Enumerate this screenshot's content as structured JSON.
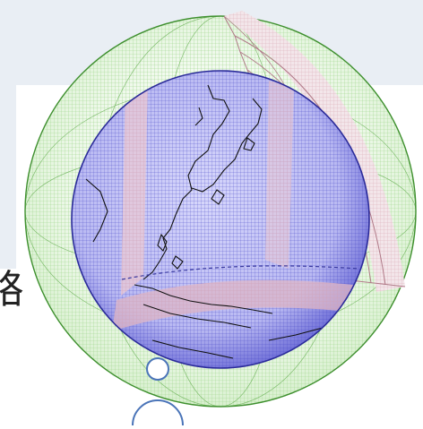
{
  "figure": {
    "edge_text": "略",
    "colors": {
      "background_panel": "#e9eef4",
      "outer_shell_mesh": "#6fbf55",
      "inner_sphere_fill": "#b9b9f2",
      "inner_mesh": "#4848c8",
      "cutaway_panel": "#e8d4dc",
      "cutaway_mesh": "#d9a8b4",
      "coastline": "#111111",
      "bubble_outline": "#4a74b8"
    },
    "icons": [
      "mesh-globe",
      "bubble-small",
      "bubble-large"
    ]
  }
}
